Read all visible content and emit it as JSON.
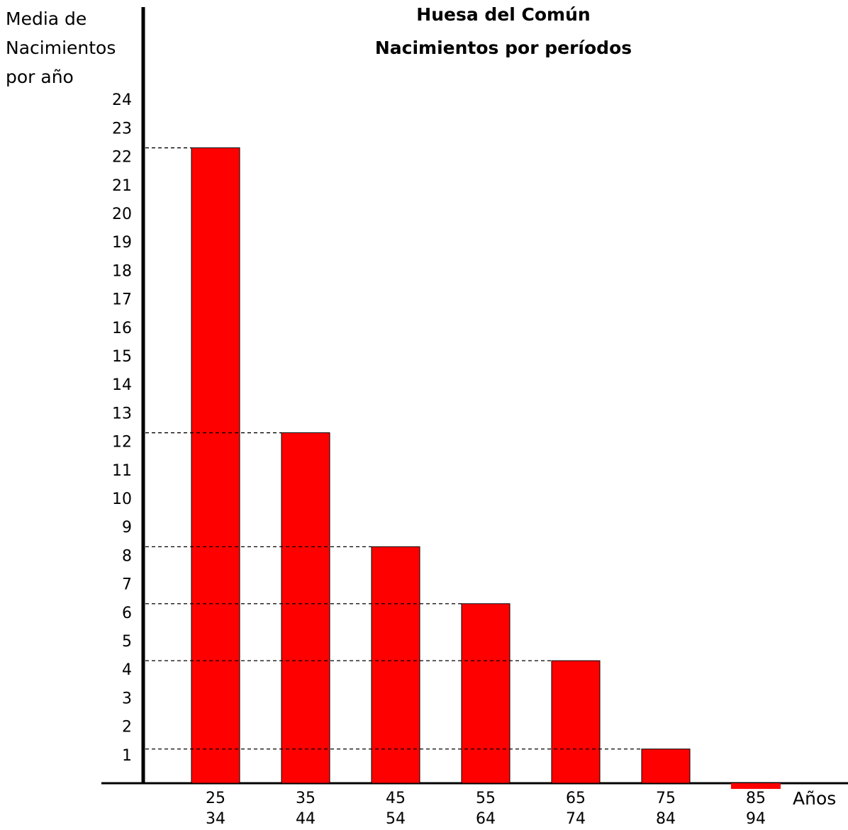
{
  "chart_data": {
    "type": "bar",
    "title": "Huesa del Común",
    "subtitle": "Nacimientos por períodos",
    "ylabel_lines": [
      "Media de",
      "Nacimientos",
      "por año"
    ],
    "xlabel": "Años",
    "categories": [
      {
        "from": "25",
        "to": "34"
      },
      {
        "from": "35",
        "to": "44"
      },
      {
        "from": "45",
        "to": "54"
      },
      {
        "from": "55",
        "to": "64"
      },
      {
        "from": "65",
        "to": "74"
      },
      {
        "from": "75",
        "to": "84"
      },
      {
        "from": "85",
        "to": "94"
      }
    ],
    "values": [
      22.3,
      12.3,
      8.3,
      6.3,
      4.3,
      1.2,
      -0.2
    ],
    "yticks": [
      1,
      2,
      3,
      4,
      5,
      6,
      7,
      8,
      9,
      10,
      11,
      12,
      13,
      14,
      15,
      16,
      17,
      18,
      19,
      20,
      21,
      22,
      23,
      24
    ],
    "ylim": [
      0,
      24
    ],
    "bar_color": "#ff0000",
    "reference_lines": "dashed",
    "grid": false
  }
}
